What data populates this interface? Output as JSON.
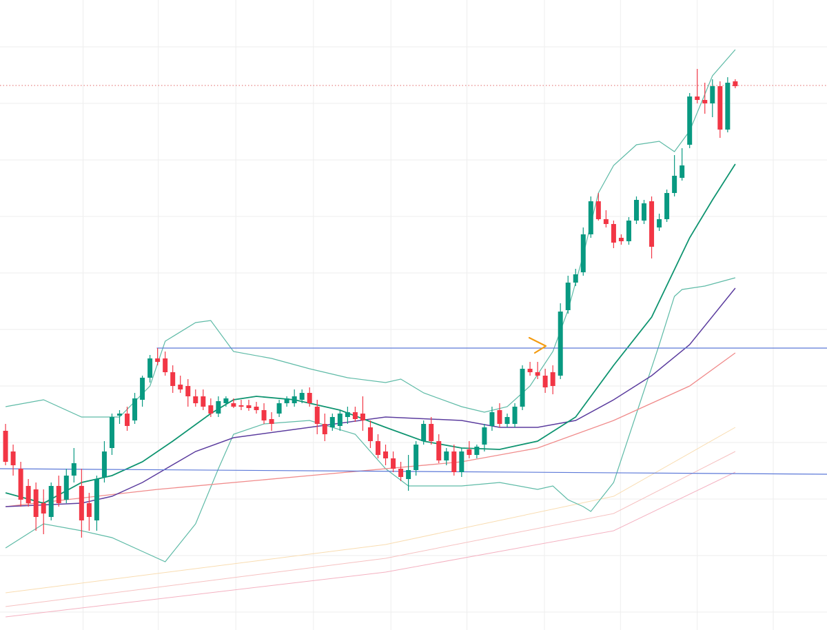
{
  "chart_data": {
    "type": "candlestick",
    "ylim": [
      86,
      1000
    ],
    "xlim": [
      -0.73,
      108.07
    ],
    "grid": true,
    "yticks": [
      932,
      850,
      768,
      686,
      604,
      522,
      440,
      358,
      276,
      194,
      112
    ],
    "xticks": [
      10.2,
      20.1,
      30.3,
      40.5,
      50.7,
      60.7,
      70.9,
      80.9,
      91.0,
      101.0
    ],
    "up_color": "#089981",
    "down_color": "#f23645",
    "ohlc": [
      [
        375,
        385,
        325,
        330
      ],
      [
        345,
        355,
        310,
        325
      ],
      [
        320,
        330,
        265,
        275
      ],
      [
        295,
        305,
        265,
        270
      ],
      [
        290,
        300,
        230,
        250
      ],
      [
        270,
        290,
        225,
        255
      ],
      [
        250,
        300,
        245,
        295
      ],
      [
        295,
        310,
        265,
        270
      ],
      [
        275,
        320,
        270,
        310
      ],
      [
        310,
        350,
        300,
        328
      ],
      [
        295,
        320,
        220,
        245
      ],
      [
        270,
        285,
        230,
        250
      ],
      [
        245,
        310,
        230,
        305
      ],
      [
        308,
        360,
        300,
        345
      ],
      [
        350,
        400,
        340,
        395
      ],
      [
        397,
        405,
        385,
        400
      ],
      [
        400,
        410,
        375,
        382
      ],
      [
        390,
        430,
        385,
        422
      ],
      [
        420,
        455,
        410,
        452
      ],
      [
        452,
        485,
        445,
        480
      ],
      [
        480,
        495,
        470,
        475
      ],
      [
        480,
        490,
        455,
        460
      ],
      [
        460,
        470,
        430,
        440
      ],
      [
        442,
        455,
        430,
        435
      ],
      [
        440,
        450,
        410,
        425
      ],
      [
        425,
        435,
        410,
        415
      ],
      [
        425,
        435,
        405,
        410
      ],
      [
        412,
        422,
        395,
        400
      ],
      [
        400,
        425,
        395,
        418
      ],
      [
        415,
        425,
        410,
        422
      ],
      [
        415,
        422,
        408,
        410
      ],
      [
        412,
        420,
        405,
        410
      ],
      [
        412,
        420,
        404,
        408
      ],
      [
        410,
        417,
        400,
        405
      ],
      [
        405,
        415,
        385,
        390
      ],
      [
        392,
        402,
        375,
        385
      ],
      [
        400,
        420,
        395,
        415
      ],
      [
        415,
        425,
        410,
        422
      ],
      [
        415,
        435,
        410,
        425
      ],
      [
        420,
        435,
        415,
        430
      ],
      [
        430,
        438,
        410,
        415
      ],
      [
        410,
        420,
        370,
        385
      ],
      [
        385,
        400,
        360,
        370
      ],
      [
        380,
        400,
        375,
        395
      ],
      [
        382,
        405,
        375,
        400
      ],
      [
        395,
        410,
        385,
        402
      ],
      [
        402,
        410,
        388,
        392
      ],
      [
        400,
        425,
        375,
        390
      ],
      [
        380,
        390,
        350,
        360
      ],
      [
        360,
        370,
        335,
        340
      ],
      [
        345,
        355,
        325,
        335
      ],
      [
        335,
        345,
        315,
        320
      ],
      [
        320,
        330,
        302,
        308
      ],
      [
        305,
        340,
        288,
        318
      ],
      [
        318,
        360,
        310,
        355
      ],
      [
        360,
        390,
        355,
        385
      ],
      [
        385,
        395,
        355,
        360
      ],
      [
        360,
        370,
        328,
        332
      ],
      [
        332,
        350,
        325,
        345
      ],
      [
        345,
        355,
        310,
        315
      ],
      [
        315,
        350,
        308,
        345
      ],
      [
        348,
        360,
        335,
        340
      ],
      [
        340,
        355,
        335,
        352
      ],
      [
        355,
        385,
        345,
        380
      ],
      [
        382,
        410,
        375,
        402
      ],
      [
        405,
        415,
        380,
        385
      ],
      [
        385,
        400,
        380,
        395
      ],
      [
        385,
        415,
        380,
        410
      ],
      [
        410,
        470,
        405,
        465
      ],
      [
        465,
        475,
        455,
        460
      ],
      [
        460,
        475,
        450,
        455
      ],
      [
        455,
        465,
        430,
        438
      ],
      [
        460,
        470,
        428,
        440
      ],
      [
        455,
        560,
        450,
        548
      ],
      [
        550,
        600,
        545,
        590
      ],
      [
        590,
        610,
        585,
        602
      ],
      [
        605,
        670,
        600,
        660
      ],
      [
        660,
        715,
        655,
        708
      ],
      [
        708,
        720,
        680,
        682
      ],
      [
        682,
        695,
        670,
        675
      ],
      [
        675,
        680,
        640,
        648
      ],
      [
        655,
        660,
        645,
        650
      ],
      [
        650,
        685,
        645,
        680
      ],
      [
        680,
        715,
        675,
        710
      ],
      [
        680,
        710,
        675,
        705
      ],
      [
        708,
        715,
        625,
        642
      ],
      [
        670,
        690,
        665,
        682
      ],
      [
        682,
        725,
        678,
        720
      ],
      [
        720,
        775,
        715,
        745
      ],
      [
        742,
        785,
        738,
        760
      ],
      [
        790,
        865,
        785,
        860
      ],
      [
        860,
        900,
        850,
        855
      ],
      [
        855,
        880,
        835,
        850
      ],
      [
        850,
        885,
        830,
        875
      ],
      [
        875,
        882,
        800,
        812
      ],
      [
        812,
        888,
        808,
        880
      ],
      [
        882,
        885,
        872,
        875
      ]
    ],
    "lines": [
      {
        "color": "#f9dcb0",
        "width": 1,
        "x": [
          0,
          50,
          80,
          96
        ],
        "values": [
          140,
          210,
          280,
          380
        ]
      },
      {
        "color": "#f6c0c0",
        "width": 1,
        "x": [
          0,
          50,
          80,
          96
        ],
        "values": [
          120,
          190,
          255,
          345
        ]
      },
      {
        "color": "#f4b0c0",
        "width": 1,
        "x": [
          0,
          50,
          80,
          96
        ],
        "values": [
          105,
          170,
          230,
          315
        ]
      },
      {
        "color": "#5dbaa6",
        "width": 1.2,
        "x": [
          0,
          5,
          10,
          15,
          19,
          21,
          25,
          27,
          30,
          35,
          40,
          45,
          50,
          52,
          55,
          60,
          63,
          66,
          69,
          72,
          74,
          76,
          78,
          80,
          83,
          86,
          88,
          90,
          93,
          96
        ],
        "values": [
          410,
          420,
          395,
          395,
          440,
          505,
          532,
          535,
          490,
          480,
          465,
          452,
          445,
          450,
          430,
          410,
          402,
          410,
          440,
          490,
          550,
          630,
          720,
          760,
          790,
          795,
          780,
          810,
          890,
          928
        ]
      },
      {
        "color": "#5dbaa6",
        "width": 1.2,
        "x": [
          0,
          5,
          10,
          14,
          18,
          21,
          25,
          28,
          30,
          34,
          40,
          46,
          50,
          53,
          60,
          65,
          70,
          72,
          74,
          76,
          77,
          80,
          83,
          86,
          88,
          89,
          92,
          96
        ],
        "values": [
          205,
          240,
          230,
          220,
          200,
          185,
          240,
          320,
          370,
          385,
          390,
          370,
          320,
          295,
          295,
          300,
          290,
          295,
          275,
          265,
          258,
          300,
          400,
          500,
          570,
          580,
          585,
          597
        ]
      },
      {
        "color": "#f08a8a",
        "width": 1.3,
        "x": [
          0,
          20,
          40,
          60,
          70,
          80,
          90,
          96
        ],
        "values": [
          265,
          290,
          310,
          330,
          350,
          390,
          440,
          488
        ]
      },
      {
        "color": "#5b3c9e",
        "width": 1.5,
        "x": [
          0,
          10,
          14,
          18,
          25,
          30,
          40,
          50,
          60,
          65,
          70,
          75,
          80,
          85,
          90,
          96
        ],
        "values": [
          265,
          270,
          280,
          300,
          345,
          365,
          380,
          395,
          390,
          380,
          380,
          390,
          420,
          455,
          500,
          582
        ]
      },
      {
        "color": "#0e9470",
        "width": 1.8,
        "x": [
          0,
          5,
          10,
          14,
          18,
          22,
          27,
          30,
          33,
          38,
          44,
          50,
          55,
          60,
          65,
          70,
          75,
          80,
          85,
          90,
          93,
          96
        ],
        "values": [
          285,
          270,
          300,
          310,
          330,
          360,
          400,
          420,
          425,
          420,
          405,
          380,
          360,
          350,
          348,
          360,
          395,
          470,
          540,
          655,
          710,
          762
        ]
      },
      {
        "color": "#5b78d8",
        "width": 1.2,
        "x": [
          19.9,
          108.07
        ],
        "values": [
          495,
          495
        ]
      },
      {
        "color": "#5b78d8",
        "width": 1.2,
        "x": [
          -0.73,
          108.07
        ],
        "values": [
          320,
          312
        ]
      },
      {
        "color": "#e06666",
        "width": 1,
        "dotted": true,
        "x": [
          -0.73,
          108.07
        ],
        "values": [
          876,
          876
        ]
      }
    ]
  }
}
